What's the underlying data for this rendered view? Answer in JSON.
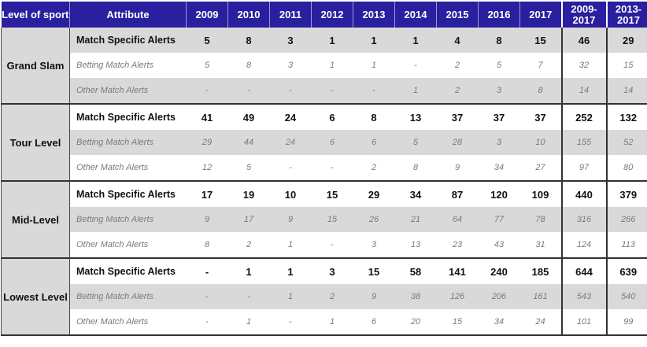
{
  "header": {
    "level": "Level of sport",
    "attribute": "Attribute",
    "years": [
      "2009",
      "2010",
      "2011",
      "2012",
      "2013",
      "2014",
      "2015",
      "2016",
      "2017"
    ],
    "range1": "2009-2017",
    "range2": "2013-2017"
  },
  "groups": [
    {
      "level": "Grand Slam",
      "rows": [
        {
          "attr": "Match Specific Alerts",
          "vals": [
            "5",
            "8",
            "3",
            "1",
            "1",
            "1",
            "4",
            "8",
            "15",
            "46",
            "29"
          ]
        },
        {
          "attr": "Betting Match Alerts",
          "vals": [
            "5",
            "8",
            "3",
            "1",
            "1",
            "-",
            "2",
            "5",
            "7",
            "32",
            "15"
          ]
        },
        {
          "attr": "Other Match Alerts",
          "vals": [
            "-",
            "-",
            "-",
            "-",
            "-",
            "1",
            "2",
            "3",
            "8",
            "14",
            "14"
          ]
        }
      ]
    },
    {
      "level": "Tour Level",
      "rows": [
        {
          "attr": "Match Specific Alerts",
          "vals": [
            "41",
            "49",
            "24",
            "6",
            "8",
            "13",
            "37",
            "37",
            "37",
            "252",
            "132"
          ]
        },
        {
          "attr": "Betting Match Alerts",
          "vals": [
            "29",
            "44",
            "24",
            "6",
            "6",
            "5",
            "28",
            "3",
            "10",
            "155",
            "52"
          ]
        },
        {
          "attr": "Other Match Alerts",
          "vals": [
            "12",
            "5",
            "-",
            "-",
            "2",
            "8",
            "9",
            "34",
            "27",
            "97",
            "80"
          ]
        }
      ]
    },
    {
      "level": "Mid-Level",
      "rows": [
        {
          "attr": "Match Specific Alerts",
          "vals": [
            "17",
            "19",
            "10",
            "15",
            "29",
            "34",
            "87",
            "120",
            "109",
            "440",
            "379"
          ]
        },
        {
          "attr": "Betting Match Alerts",
          "vals": [
            "9",
            "17",
            "9",
            "15",
            "26",
            "21",
            "64",
            "77",
            "78",
            "316",
            "266"
          ]
        },
        {
          "attr": "Other Match Alerts",
          "vals": [
            "8",
            "2",
            "1",
            "-",
            "3",
            "13",
            "23",
            "43",
            "31",
            "124",
            "113"
          ]
        }
      ]
    },
    {
      "level": "Lowest Level",
      "rows": [
        {
          "attr": "Match Specific Alerts",
          "vals": [
            "-",
            "1",
            "1",
            "3",
            "15",
            "58",
            "141",
            "240",
            "185",
            "644",
            "639"
          ]
        },
        {
          "attr": "Betting Match Alerts",
          "vals": [
            "-",
            "-",
            "1",
            "2",
            "9",
            "38",
            "126",
            "206",
            "161",
            "543",
            "540"
          ]
        },
        {
          "attr": "Other Match Alerts",
          "vals": [
            "-",
            "1",
            "-",
            "1",
            "6",
            "20",
            "15",
            "34",
            "24",
            "101",
            "99"
          ]
        }
      ]
    }
  ]
}
